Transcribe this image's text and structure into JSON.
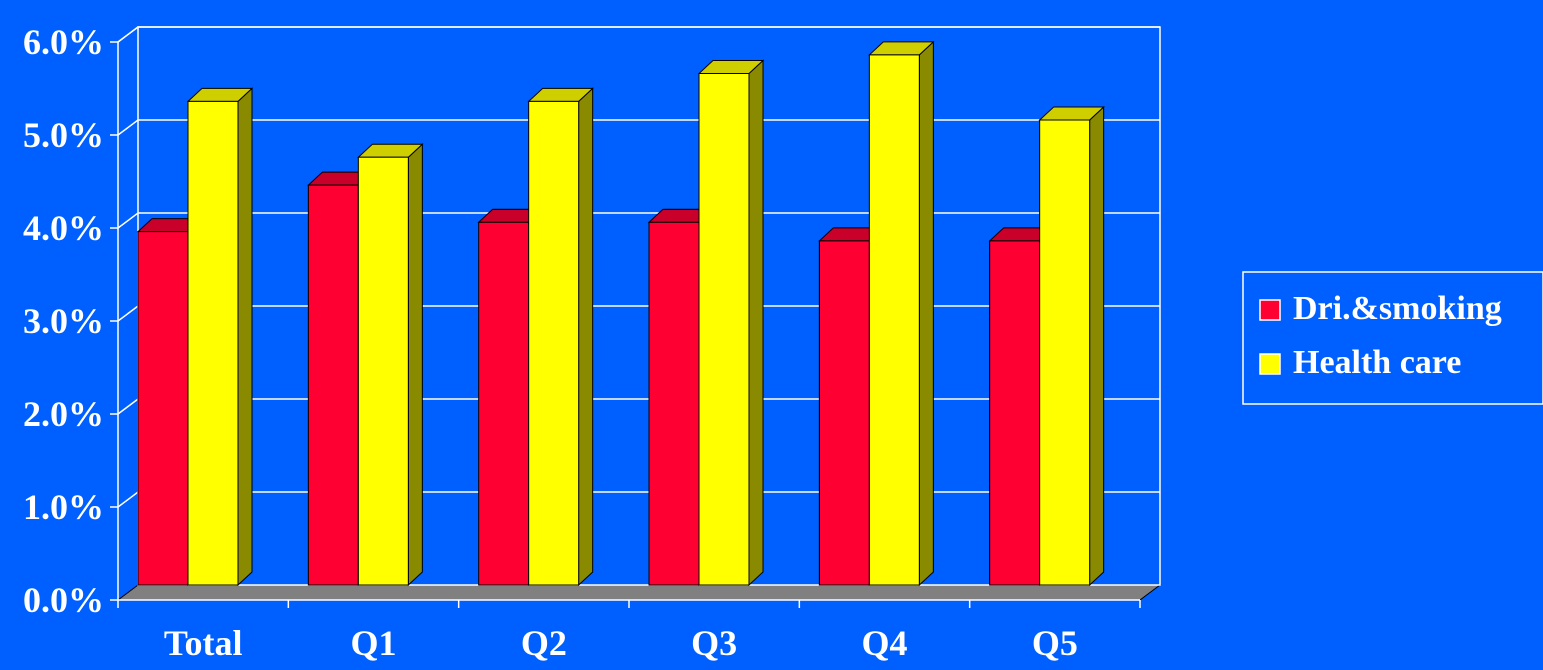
{
  "colors": {
    "background": "#0060FF",
    "gridline": "#FFFFFF",
    "floor": "#808080",
    "text": "#FFFFFF"
  },
  "chart_data": {
    "type": "bar",
    "style": "3d-clustered-column",
    "categories": [
      "Total",
      "Q1",
      "Q2",
      "Q3",
      "Q4",
      "Q5"
    ],
    "series": [
      {
        "name": "Dri.&smoking",
        "values": [
          3.8,
          4.3,
          3.9,
          3.9,
          3.7,
          3.7
        ],
        "color": "#FF0033",
        "top_color": "#C8002A",
        "side_color": "#B00026"
      },
      {
        "name": "Health care",
        "values": [
          5.2,
          4.6,
          5.2,
          5.5,
          5.7,
          5.0
        ],
        "color": "#FFFF00",
        "top_color": "#CFCF00",
        "side_color": "#8A8A00"
      }
    ],
    "ylim": [
      0,
      6
    ],
    "yticks": [
      "0.0%",
      "1.0%",
      "2.0%",
      "3.0%",
      "4.0%",
      "5.0%",
      "6.0%"
    ],
    "grid": true,
    "legend_position": "right",
    "title": "",
    "xlabel": "",
    "ylabel": ""
  }
}
